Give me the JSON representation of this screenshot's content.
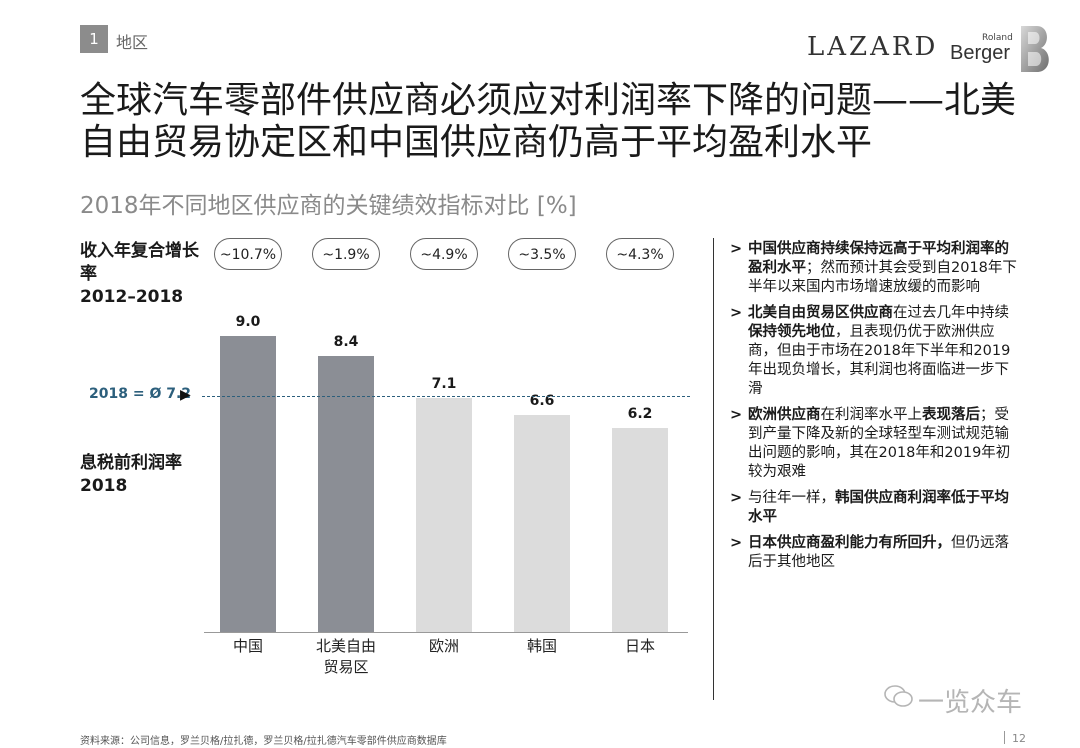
{
  "section": {
    "number": "1",
    "label": "地区"
  },
  "logos": {
    "lazard": "LAZARD",
    "roland": "Roland",
    "berger": "Berger"
  },
  "title": "全球汽车零部件供应商必须应对利润率下降的问题——北美自由贸易协定区和中国供应商仍高于平均盈利水平",
  "subtitle": "2018年不同地区供应商的关键绩效指标对比 [%]",
  "cagr_label": "收入年复合增长率",
  "cagr_period": "2012–2018",
  "ebit_label": "息税前利润率",
  "ebit_year": "2018",
  "average_label": "2018 = Ø 7.2",
  "chart_data": {
    "type": "bar",
    "categories": [
      "中国",
      "北美自由贸易区",
      "欧洲",
      "韩国",
      "日本"
    ],
    "category_labels": [
      [
        "中国"
      ],
      [
        "北美自由",
        "贸易区"
      ],
      [
        "欧洲"
      ],
      [
        "韩国"
      ],
      [
        "日本"
      ]
    ],
    "values": [
      9.0,
      8.4,
      7.1,
      6.6,
      6.2
    ],
    "value_labels": [
      "9.0",
      "8.4",
      "7.1",
      "6.6",
      "6.2"
    ],
    "cagr": [
      "~10.7%",
      "~1.9%",
      "~4.9%",
      "~3.5%",
      "~4.3%"
    ],
    "average": 7.2,
    "bar_colors": [
      "#8b8e95",
      "#8b8e95",
      "#dcdcdc",
      "#dcdcdc",
      "#dcdcdc"
    ],
    "avg_line_color": "#2c5f7c",
    "ylim": [
      0,
      9.0
    ]
  },
  "bullets": [
    {
      "parts": [
        {
          "t": "中国供应商持续保持远高于平均利润率的盈利水平",
          "b": true
        },
        {
          "t": "；然而预计其会受到自2018年下半年以来国内市场增速放缓的而影响",
          "b": false
        }
      ]
    },
    {
      "parts": [
        {
          "t": "北美自由贸易区供应商",
          "b": true
        },
        {
          "t": "在过去几年中持续",
          "b": false
        },
        {
          "t": "保持领先地位",
          "b": true
        },
        {
          "t": "，且表现仍优于欧洲供应商，但由于市场在2018年下半年和2019年出现负增长，其利润也将面临进一步下滑",
          "b": false
        }
      ]
    },
    {
      "parts": [
        {
          "t": "欧洲供应商",
          "b": true
        },
        {
          "t": "在利润率水平上",
          "b": false
        },
        {
          "t": "表现落后",
          "b": true
        },
        {
          "t": "；受到产量下降及新的全球轻型车测试规范输出问题的影响，其在2018年和2019年初较为艰难",
          "b": false
        }
      ]
    },
    {
      "parts": [
        {
          "t": "与往年一样，",
          "b": false
        },
        {
          "t": "韩国供应商利润率低于平均水平",
          "b": true
        }
      ]
    },
    {
      "parts": [
        {
          "t": "日本供应商盈利能力有所回升，",
          "b": true
        },
        {
          "t": "但仍远落后于其他地区",
          "b": false
        }
      ]
    }
  ],
  "bullet_marker": ">",
  "watermark": "一览众车",
  "source": "资料来源：公司信息，罗兰贝格/拉扎德，罗兰贝格/拉扎德汽车零部件供应商数据库",
  "page": "12"
}
